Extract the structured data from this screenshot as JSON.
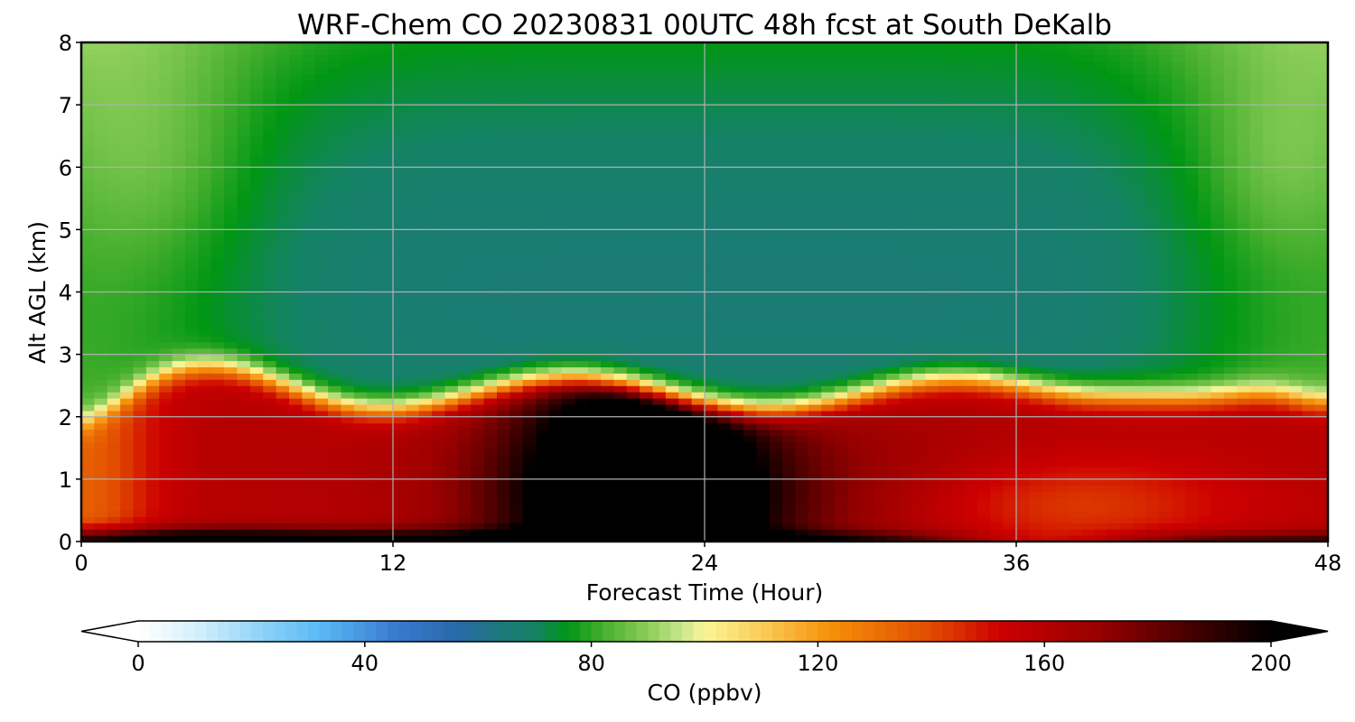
{
  "chart_data": {
    "type": "heatmap",
    "title": "WRF-Chem CO  20230831 00UTC 48h fcst at South DeKalb",
    "xlabel": "Forecast Time (Hour)",
    "ylabel": "Alt AGL (km)",
    "xlim": [
      0,
      48
    ],
    "ylim": [
      0,
      8
    ],
    "xticks": [
      "0",
      "12",
      "24",
      "36",
      "48"
    ],
    "yticks": [
      "0",
      "1",
      "2",
      "3",
      "4",
      "5",
      "6",
      "7",
      "8"
    ],
    "grid": true,
    "x": [
      0,
      2,
      4,
      6,
      8,
      10,
      12,
      14,
      16,
      18,
      20,
      22,
      24,
      26,
      28,
      30,
      32,
      34,
      36,
      38,
      40,
      42,
      44,
      46,
      48
    ],
    "y": [
      0,
      0.25,
      0.5,
      0.75,
      1.0,
      1.25,
      1.5,
      1.75,
      2.0,
      2.25,
      2.5,
      2.75,
      3.0,
      3.5,
      4.0,
      4.5,
      5.0,
      5.5,
      6.0,
      6.5,
      7.0,
      7.5,
      8.0
    ],
    "z_description": "CO mixing ratio in ppbv; black >= 200 near surface around hour 18-24, red 150-175 in boundary layer below ~2.3 km, sharp yellow gradient ~2.3 km, teal 60-70 free troposphere, green 75-90 at edges",
    "colorbar": {
      "label": "CO  (ppbv)",
      "ticks": [
        "0",
        "40",
        "80",
        "120",
        "160",
        "200"
      ],
      "min": 0,
      "max": 200,
      "extend": "both"
    }
  }
}
